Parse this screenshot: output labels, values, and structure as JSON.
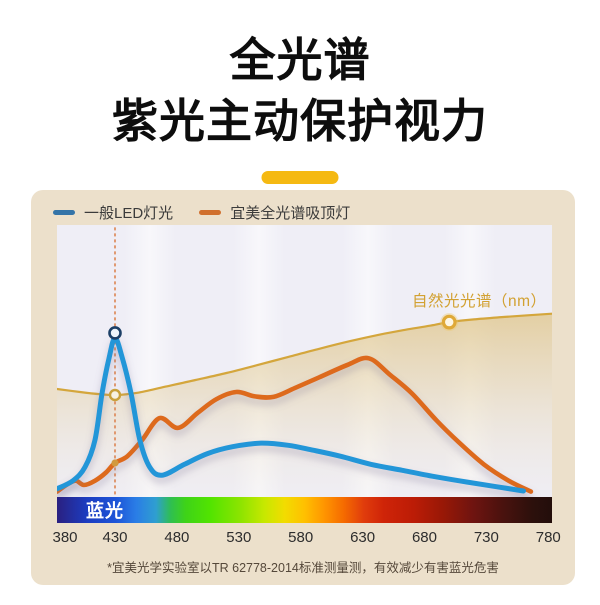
{
  "header": {
    "title_line1": "全光谱",
    "title_line2": "紫光主动保护视力"
  },
  "colors": {
    "accent_yellow": "#f5b912",
    "panel_bg": "#ece0cb",
    "plot_bg": "#efeef6",
    "blue_series": "#2496d8",
    "orange_series": "#dd6a1e",
    "gold_series": "#d4a63c",
    "gold_label_text": "#d2a132",
    "title_text": "#0d0d0d",
    "tick_text": "#2d2d2d",
    "footnote_text": "#55483a"
  },
  "legend": [
    {
      "label": "一般LED灯光",
      "color": "#3474a8"
    },
    {
      "label": "宜美全光谱吸顶灯",
      "color": "#d0702e"
    }
  ],
  "chart_data": {
    "type": "line",
    "title": "",
    "xlabel": "wavelength (nm)",
    "ylabel": "relative intensity (no axis shown)",
    "x_range": [
      380,
      780
    ],
    "x_ticks": [
      380,
      430,
      480,
      530,
      580,
      630,
      680,
      730,
      780
    ],
    "grid": false,
    "legend_position": "top-left",
    "annotation": "自然光光谱（nm）",
    "blue_light_label": "蓝光",
    "highlight_nm": 430,
    "series": [
      {
        "key": "general_led",
        "name": "一般LED灯光",
        "color": "#2496d8",
        "points": [
          [
            372,
            3
          ],
          [
            388,
            6
          ],
          [
            400,
            11
          ],
          [
            410,
            21
          ],
          [
            417,
            38
          ],
          [
            424,
            51
          ],
          [
            430,
            58.5
          ],
          [
            436,
            51
          ],
          [
            443,
            38
          ],
          [
            450,
            21
          ],
          [
            458,
            11
          ],
          [
            468,
            8
          ],
          [
            486,
            12
          ],
          [
            505,
            16
          ],
          [
            525,
            18.5
          ],
          [
            548,
            19.8
          ],
          [
            570,
            19
          ],
          [
            590,
            17.2
          ],
          [
            612,
            15
          ],
          [
            637,
            12
          ],
          [
            662,
            9.8
          ],
          [
            688,
            7.5
          ],
          [
            714,
            5.5
          ],
          [
            738,
            3.8
          ],
          [
            760,
            2.2
          ]
        ]
      },
      {
        "key": "yimei_full_spectrum",
        "name": "宜美全光谱吸顶灯",
        "color": "#dd6a1e",
        "points": [
          [
            372,
            2
          ],
          [
            383,
            4.8
          ],
          [
            391,
            6
          ],
          [
            399,
            4.4
          ],
          [
            410,
            6
          ],
          [
            421,
            9
          ],
          [
            430,
            12.5
          ],
          [
            440,
            15
          ],
          [
            452,
            21
          ],
          [
            466,
            29
          ],
          [
            481,
            25.4
          ],
          [
            497,
            31
          ],
          [
            512,
            36
          ],
          [
            528,
            38.6
          ],
          [
            543,
            37
          ],
          [
            558,
            36.8
          ],
          [
            575,
            40
          ],
          [
            595,
            44
          ],
          [
            618,
            48.6
          ],
          [
            635,
            51
          ],
          [
            652,
            45
          ],
          [
            670,
            38
          ],
          [
            690,
            28
          ],
          [
            708,
            20
          ],
          [
            728,
            12
          ],
          [
            748,
            6
          ],
          [
            766,
            2
          ]
        ]
      },
      {
        "key": "natural_light",
        "name": "自然光光谱",
        "color": "#d4a63c",
        "points": [
          [
            372,
            39.7
          ],
          [
            395,
            38.6
          ],
          [
            415,
            37.8
          ],
          [
            430,
            37.5
          ],
          [
            448,
            38.3
          ],
          [
            470,
            40.5
          ],
          [
            495,
            43
          ],
          [
            520,
            45.6
          ],
          [
            545,
            48.5
          ],
          [
            570,
            51.5
          ],
          [
            595,
            54.5
          ],
          [
            620,
            57.3
          ],
          [
            645,
            59.8
          ],
          [
            665,
            61.5
          ],
          [
            685,
            63
          ],
          [
            700,
            64.3
          ],
          [
            720,
            65.3
          ],
          [
            745,
            66.2
          ],
          [
            783,
            67.4
          ]
        ]
      }
    ],
    "markers": [
      {
        "nm": 430,
        "rel": 60.3,
        "style": "blue-ring"
      },
      {
        "nm": 430,
        "rel": 37.5,
        "style": "gold-ring"
      },
      {
        "nm": 430,
        "rel": 12.5,
        "style": "gold-dot"
      },
      {
        "nm": 700,
        "rel": 64.3,
        "style": "gold-donut",
        "annotation": true
      }
    ]
  },
  "footnote": "*宜美光学实验室以TR 62778-2014标准测量测，有效减少有害蓝光危害"
}
